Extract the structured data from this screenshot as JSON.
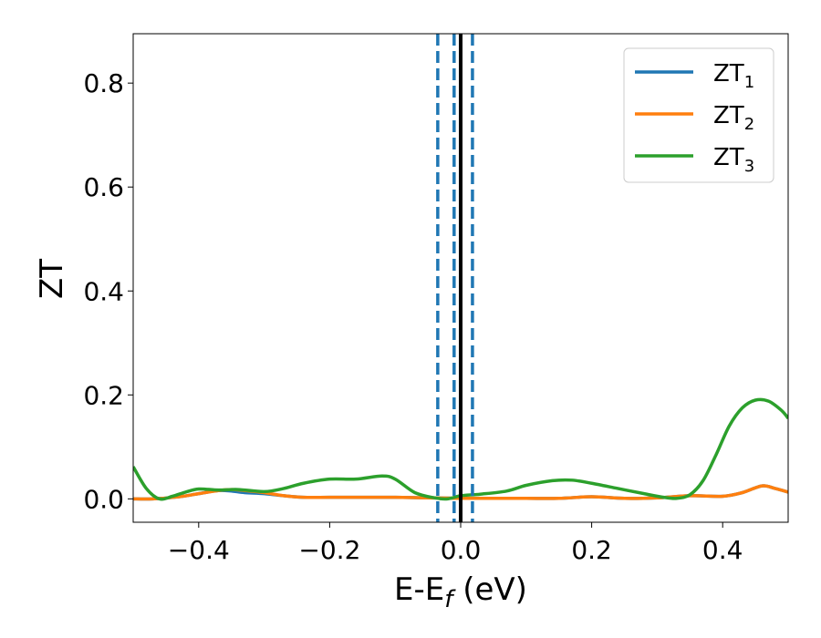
{
  "chart_data": {
    "type": "line",
    "xlabel": {
      "main": "E-E",
      "sub": "f",
      "suffix": " (eV)"
    },
    "ylabel": "ZT",
    "xlim": [
      -0.5,
      0.5
    ],
    "ylim": [
      -0.045,
      0.895
    ],
    "x_ticks": [
      -0.4,
      -0.2,
      0.0,
      0.2,
      0.4
    ],
    "x_tick_labels": [
      "−0.4",
      "−0.2",
      "0.0",
      "0.2",
      "0.4"
    ],
    "y_ticks": [
      0.0,
      0.2,
      0.4,
      0.6,
      0.8
    ],
    "y_tick_labels": [
      "0.0",
      "0.2",
      "0.4",
      "0.6",
      "0.8"
    ],
    "grid": false,
    "legend": {
      "position": "top-right",
      "entries": [
        {
          "main": "ZT",
          "sub": "1"
        },
        {
          "main": "ZT",
          "sub": "2"
        },
        {
          "main": "ZT",
          "sub": "3"
        }
      ]
    },
    "vertical_lines": [
      {
        "x": -0.035,
        "style": "dashed",
        "color": "#1f77b4"
      },
      {
        "x": -0.01,
        "style": "dashed",
        "color": "#1f77b4"
      },
      {
        "x": 0.018,
        "style": "dashed",
        "color": "#1f77b4"
      },
      {
        "x": 0.0,
        "style": "solid",
        "color": "#000000"
      }
    ],
    "series": [
      {
        "color": "#1f77b4",
        "x": [
          -0.5,
          -0.47,
          -0.43,
          -0.4,
          -0.37,
          -0.35,
          -0.33,
          -0.3,
          -0.27,
          -0.24,
          -0.2,
          -0.15,
          -0.1,
          -0.05,
          0.0,
          0.05,
          0.1,
          0.15,
          0.2,
          0.25,
          0.3,
          0.35,
          0.4,
          0.43,
          0.46,
          0.48,
          0.5
        ],
        "y": [
          0.0,
          0.0,
          0.004,
          0.01,
          0.016,
          0.015,
          0.012,
          0.01,
          0.006,
          0.003,
          0.003,
          0.003,
          0.003,
          0.002,
          0.001,
          0.001,
          0.001,
          0.001,
          0.004,
          0.001,
          0.002,
          0.006,
          0.005,
          0.012,
          0.025,
          0.02,
          0.013
        ]
      },
      {
        "color": "#ff7f0e",
        "x": [
          -0.5,
          -0.47,
          -0.43,
          -0.4,
          -0.37,
          -0.35,
          -0.33,
          -0.3,
          -0.27,
          -0.24,
          -0.2,
          -0.15,
          -0.1,
          -0.05,
          0.0,
          0.05,
          0.1,
          0.15,
          0.2,
          0.25,
          0.3,
          0.35,
          0.4,
          0.43,
          0.46,
          0.48,
          0.5
        ],
        "y": [
          0.0,
          0.0,
          0.004,
          0.01,
          0.016,
          0.018,
          0.016,
          0.012,
          0.006,
          0.003,
          0.003,
          0.003,
          0.003,
          0.002,
          0.001,
          0.001,
          0.001,
          0.001,
          0.004,
          0.001,
          0.002,
          0.006,
          0.005,
          0.012,
          0.025,
          0.02,
          0.013
        ]
      },
      {
        "color": "#2ca02c",
        "x": [
          -0.5,
          -0.48,
          -0.46,
          -0.44,
          -0.42,
          -0.4,
          -0.37,
          -0.34,
          -0.3,
          -0.27,
          -0.24,
          -0.2,
          -0.16,
          -0.12,
          -0.1,
          -0.07,
          -0.04,
          -0.02,
          0.0,
          0.03,
          0.07,
          0.1,
          0.14,
          0.17,
          0.2,
          0.24,
          0.28,
          0.31,
          0.33,
          0.35,
          0.37,
          0.39,
          0.41,
          0.43,
          0.45,
          0.47,
          0.49,
          0.5
        ],
        "y": [
          0.062,
          0.02,
          0.0,
          0.005,
          0.013,
          0.019,
          0.017,
          0.018,
          0.014,
          0.02,
          0.03,
          0.038,
          0.038,
          0.044,
          0.038,
          0.012,
          0.002,
          0.0,
          0.006,
          0.009,
          0.015,
          0.026,
          0.035,
          0.036,
          0.03,
          0.02,
          0.01,
          0.003,
          0.001,
          0.008,
          0.035,
          0.085,
          0.14,
          0.175,
          0.19,
          0.188,
          0.17,
          0.155
        ]
      }
    ]
  }
}
